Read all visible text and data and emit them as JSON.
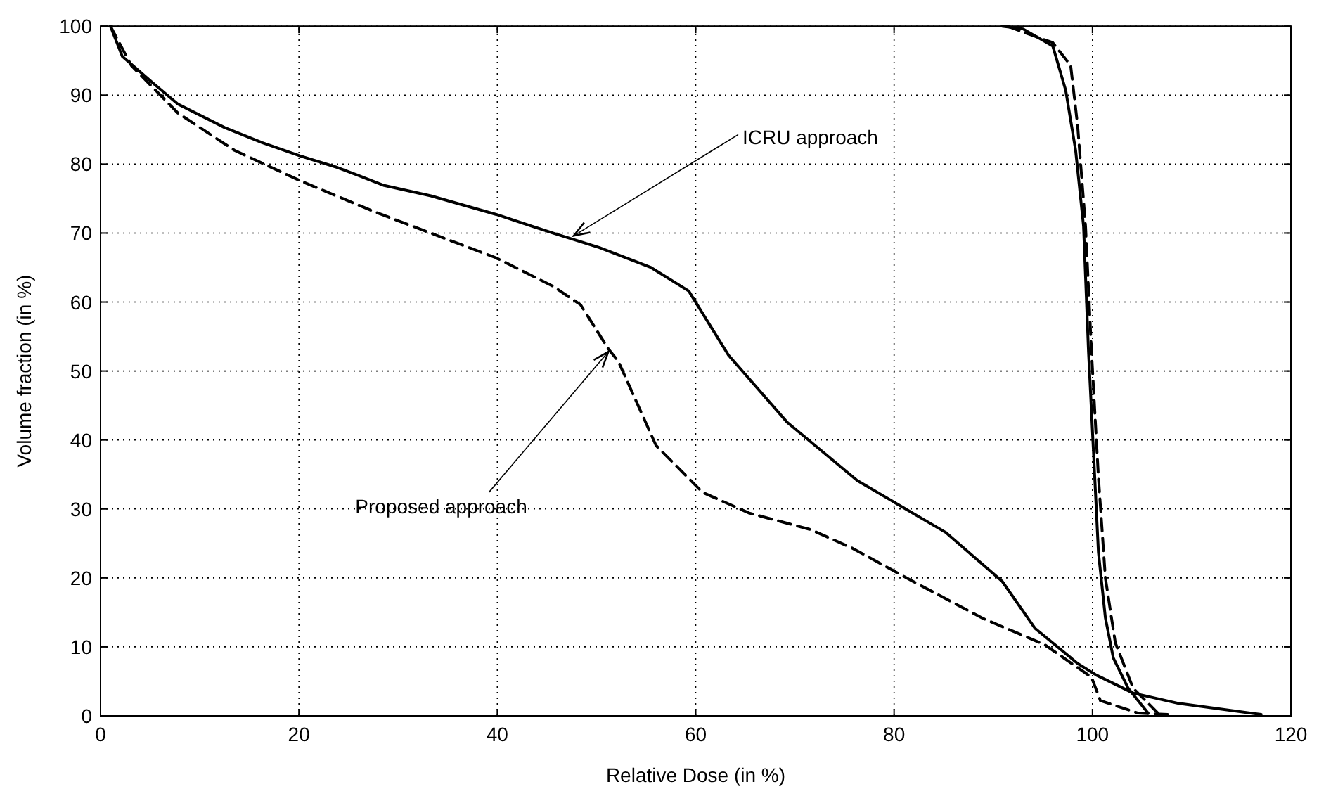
{
  "chart_data": {
    "type": "line",
    "xlabel": "Relative Dose (in %)",
    "ylabel": "Volume fraction (in %)",
    "xlim": [
      0,
      120
    ],
    "xticks": [
      0,
      20,
      40,
      60,
      80,
      100,
      120
    ],
    "ylim": [
      0,
      100
    ],
    "yticks": [
      0,
      10,
      20,
      30,
      40,
      50,
      60,
      70,
      80,
      90,
      100
    ],
    "grid": true,
    "marker": "none",
    "series": [
      {
        "color": "#000000",
        "line_style": "solid",
        "x": [
          1.0,
          2.2,
          5.4,
          7.8,
          12.5,
          16.3,
          20.1,
          23.9,
          28.6,
          33.3,
          39.9,
          45.6,
          50.3,
          55.5,
          59.3,
          63.3,
          69.2,
          76.3,
          80.1,
          85.2,
          90.9,
          94.2,
          98.5,
          100.4,
          104.1,
          108.7,
          117.0
        ],
        "values": [
          100,
          95.6,
          91.6,
          88.7,
          85.3,
          83.1,
          81.2,
          79.5,
          76.9,
          75.4,
          72.7,
          70.0,
          67.9,
          65.0,
          61.6,
          52.3,
          42.6,
          34.1,
          30.9,
          26.6,
          19.5,
          12.7,
          7.6,
          5.9,
          3.3,
          1.8,
          0.2
        ]
      },
      {
        "color": "#000000",
        "line_style": "dashed",
        "x": [
          1.0,
          3.1,
          7.8,
          13.5,
          20.1,
          27.6,
          34.2,
          39.9,
          45.6,
          48.4,
          51.2,
          52.2,
          56.0,
          60.7,
          65.4,
          71.6,
          75.8,
          81.9,
          89.0,
          95.2,
          99.9,
          100.8,
          104.6,
          107.6
        ],
        "values": [
          100,
          94.3,
          87.4,
          82.0,
          77.6,
          73.1,
          69.5,
          66.4,
          62.3,
          59.6,
          53.2,
          51.4,
          39.2,
          32.4,
          29.4,
          27.0,
          24.3,
          19.5,
          14.1,
          10.3,
          5.6,
          2.2,
          0.4,
          0.2
        ]
      },
      {
        "color": "#000000",
        "line_style": "solid",
        "x": [
          90.9,
          93.0,
          96.0,
          97.3,
          98.3,
          99.1,
          99.6,
          100.1,
          100.6,
          101.3,
          102.1,
          103.6,
          105.6
        ],
        "values": [
          100,
          99.6,
          97.1,
          90.7,
          82.0,
          71.0,
          52.8,
          38.3,
          23.7,
          14.2,
          8.4,
          4.0,
          0.4
        ]
      },
      {
        "color": "#000000",
        "line_style": "dashed",
        "x": [
          91.4,
          96.0,
          97.8,
          98.5,
          99.3,
          99.9,
          100.6,
          101.3,
          102.3,
          104.1,
          106.6
        ],
        "values": [
          100,
          97.6,
          94.3,
          85.6,
          71.0,
          52.8,
          34.6,
          20.0,
          10.6,
          4.0,
          0.4
        ]
      }
    ],
    "annotations": [
      {
        "text": "ICRU approach",
        "x": 47.7,
        "y": 69.6
      },
      {
        "text": "Proposed approach",
        "x": 51.2,
        "y": 52.8
      }
    ]
  }
}
